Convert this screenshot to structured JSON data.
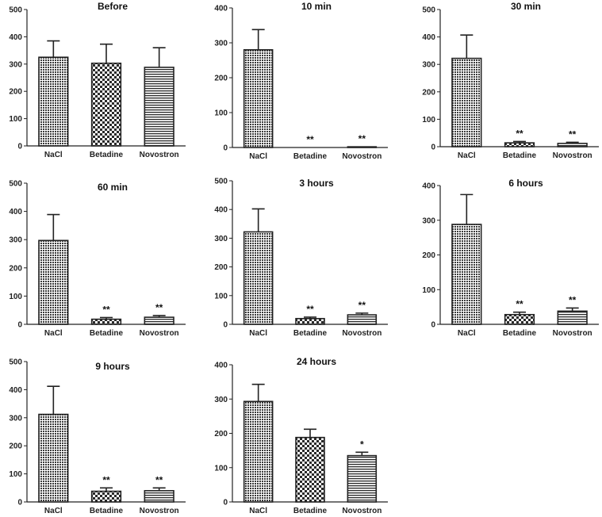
{
  "chart_data": [
    {
      "type": "bar",
      "title": "Before",
      "categories": [
        "NaCl",
        "Betadine",
        "Novostron"
      ],
      "values": [
        325,
        303,
        288
      ],
      "errors": [
        60,
        70,
        72
      ],
      "sig": [
        "",
        "",
        ""
      ],
      "ylim": [
        0,
        500
      ],
      "yticks": [
        0,
        100,
        200,
        300,
        400,
        500
      ],
      "xlabel": "",
      "ylabel": ""
    },
    {
      "type": "bar",
      "title": "10 min",
      "categories": [
        "NaCl",
        "Betadine",
        "Novostron"
      ],
      "values": [
        280,
        0,
        2
      ],
      "errors": [
        58,
        0,
        0
      ],
      "sig": [
        "",
        "**",
        "**"
      ],
      "ylim": [
        0,
        400
      ],
      "yticks": [
        0,
        100,
        200,
        300,
        400
      ],
      "xlabel": "",
      "ylabel": ""
    },
    {
      "type": "bar",
      "title": "30 min",
      "categories": [
        "NaCl",
        "Betadine",
        "Novostron"
      ],
      "values": [
        322,
        14,
        12
      ],
      "errors": [
        85,
        5,
        4
      ],
      "sig": [
        "",
        "**",
        "**"
      ],
      "ylim": [
        0,
        500
      ],
      "yticks": [
        0,
        100,
        200,
        300,
        400,
        500
      ],
      "xlabel": "",
      "ylabel": ""
    },
    {
      "type": "bar",
      "title": "60 min",
      "categories": [
        "NaCl",
        "Betadine",
        "Novostron"
      ],
      "values": [
        297,
        18,
        25
      ],
      "errors": [
        92,
        6,
        6
      ],
      "sig": [
        "",
        "**",
        "**"
      ],
      "ylim": [
        0,
        500
      ],
      "yticks": [
        0,
        100,
        200,
        300,
        400,
        500
      ],
      "xlabel": "",
      "ylabel": ""
    },
    {
      "type": "bar",
      "title": "3 hours",
      "categories": [
        "NaCl",
        "Betadine",
        "Novostron"
      ],
      "values": [
        322,
        20,
        33
      ],
      "errors": [
        80,
        5,
        6
      ],
      "sig": [
        "",
        "**",
        "**"
      ],
      "ylim": [
        0,
        500
      ],
      "yticks": [
        0,
        100,
        200,
        300,
        400,
        500
      ],
      "xlabel": "",
      "ylabel": ""
    },
    {
      "type": "bar",
      "title": "6 hours",
      "categories": [
        "NaCl",
        "Betadine",
        "Novostron"
      ],
      "values": [
        288,
        28,
        38
      ],
      "errors": [
        86,
        7,
        9
      ],
      "sig": [
        "",
        "**",
        "**"
      ],
      "ylim": [
        0,
        400
      ],
      "yticks": [
        0,
        100,
        200,
        300,
        400
      ],
      "xlabel": "",
      "ylabel": ""
    },
    {
      "type": "bar",
      "title": "9 hours",
      "categories": [
        "NaCl",
        "Betadine",
        "Novostron"
      ],
      "values": [
        312,
        38,
        40
      ],
      "errors": [
        100,
        12,
        10
      ],
      "sig": [
        "",
        "**",
        "**"
      ],
      "ylim": [
        0,
        500
      ],
      "yticks": [
        0,
        100,
        200,
        300,
        400,
        500
      ],
      "xlabel": "",
      "ylabel": ""
    },
    {
      "type": "bar",
      "title": "24 hours",
      "categories": [
        "NaCl",
        "Betadine",
        "Novostron"
      ],
      "values": [
        293,
        188,
        135
      ],
      "errors": [
        50,
        24,
        10
      ],
      "sig": [
        "",
        "",
        "*"
      ],
      "ylim": [
        0,
        400
      ],
      "yticks": [
        0,
        100,
        200,
        300,
        400
      ],
      "xlabel": "",
      "ylabel": ""
    }
  ],
  "colors": {
    "bar_outline": "#222222",
    "axis": "#222222",
    "background": "#ffffff"
  }
}
